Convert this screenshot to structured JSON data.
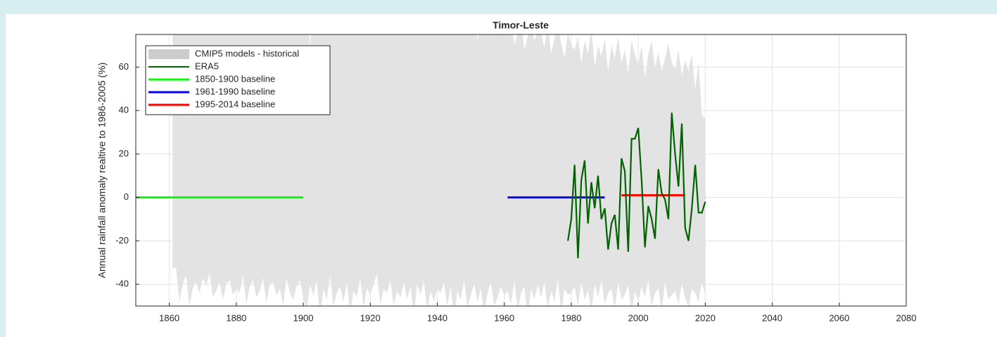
{
  "chart_data": {
    "type": "line",
    "title": "Timor-Leste",
    "ylabel": "Annual rainfall anomaly realtive to 1986-2005 (%)",
    "xlim": [
      1850,
      2080
    ],
    "xticks": [
      1860,
      1880,
      1900,
      1920,
      1940,
      1960,
      1980,
      2000,
      2020,
      2040,
      2060,
      2080
    ],
    "ylim": [
      -50,
      75
    ],
    "yticks": [
      -40,
      -20,
      0,
      20,
      40,
      60
    ],
    "grid": true,
    "legend": "upper left",
    "band": {
      "name": "CMIP5 models - historical",
      "color": "#e3e3e3",
      "x": [
        1861,
        1862,
        1863,
        1864,
        1865,
        1866,
        1867,
        1868,
        1869,
        1870,
        1871,
        1872,
        1873,
        1874,
        1875,
        1876,
        1877,
        1878,
        1879,
        1880,
        1881,
        1882,
        1883,
        1884,
        1885,
        1886,
        1887,
        1888,
        1889,
        1890,
        1891,
        1892,
        1893,
        1894,
        1895,
        1896,
        1897,
        1898,
        1899,
        1900,
        1901,
        1902,
        1903,
        1904,
        1905,
        1906,
        1907,
        1908,
        1909,
        1910,
        1911,
        1912,
        1913,
        1914,
        1915,
        1916,
        1917,
        1918,
        1919,
        1920,
        1921,
        1922,
        1923,
        1924,
        1925,
        1926,
        1927,
        1928,
        1929,
        1930,
        1931,
        1932,
        1933,
        1934,
        1935,
        1936,
        1937,
        1938,
        1939,
        1940,
        1941,
        1942,
        1943,
        1944,
        1945,
        1946,
        1947,
        1948,
        1949,
        1950,
        1951,
        1952,
        1953,
        1954,
        1955,
        1956,
        1957,
        1958,
        1959,
        1960,
        1961,
        1962,
        1963,
        1964,
        1965,
        1966,
        1967,
        1968,
        1969,
        1970,
        1971,
        1972,
        1973,
        1974,
        1975,
        1976,
        1977,
        1978,
        1979,
        1980,
        1981,
        1982,
        1983,
        1984,
        1985,
        1986,
        1987,
        1988,
        1989,
        1990,
        1991,
        1992,
        1993,
        1994,
        1995,
        1996,
        1997,
        1998,
        1999,
        2000,
        2001,
        2002,
        2003,
        2004,
        2005,
        2006,
        2007,
        2008,
        2009,
        2010,
        2011,
        2012,
        2013,
        2014,
        2015,
        2016,
        2017,
        2018,
        2019,
        2020
      ],
      "upper": [
        80,
        85,
        90,
        78,
        82,
        88,
        92,
        80,
        76,
        85,
        90,
        84,
        79,
        88,
        95,
        82,
        77,
        86,
        91,
        83,
        80,
        88,
        94,
        79,
        85,
        90,
        82,
        76,
        89,
        93,
        84,
        78,
        87,
        92,
        81,
        86,
        90,
        79,
        83,
        88,
        95,
        70,
        85,
        90,
        80,
        88,
        92,
        78,
        86,
        94,
        82,
        89,
        91,
        80,
        87,
        93,
        84,
        79,
        90,
        86,
        88,
        92,
        81,
        85,
        90,
        78,
        86,
        94,
        83,
        89,
        91,
        80,
        87,
        93,
        84,
        79,
        90,
        86,
        88,
        92,
        81,
        85,
        90,
        78,
        86,
        94,
        83,
        89,
        91,
        80,
        87,
        72,
        84,
        79,
        90,
        86,
        76,
        83,
        88,
        80,
        78,
        85,
        70,
        76,
        82,
        68,
        74,
        80,
        72,
        77,
        75,
        69,
        80,
        66,
        73,
        79,
        71,
        64,
        76,
        70,
        68,
        74,
        62,
        72,
        66,
        78,
        60,
        70,
        65,
        73,
        58,
        70,
        64,
        74,
        62,
        68,
        57,
        72,
        66,
        61,
        70,
        55,
        66,
        72,
        60,
        67,
        58,
        64,
        71,
        62,
        59,
        68,
        56,
        63,
        58,
        66,
        50,
        62,
        38,
        36
      ],
      "lower": [
        -33,
        -32,
        -48,
        -40,
        -36,
        -50,
        -42,
        -39,
        -44,
        -37,
        -41,
        -35,
        -46,
        -43,
        -39,
        -47,
        -40,
        -38,
        -45,
        -42,
        -44,
        -36,
        -49,
        -41,
        -38,
        -46,
        -43,
        -37,
        -48,
        -40,
        -39,
        -45,
        -42,
        -50,
        -37,
        -44,
        -47,
        -41,
        -38,
        -46,
        -52,
        -40,
        -45,
        -38,
        -55,
        -42,
        -47,
        -36,
        -50,
        -44,
        -41,
        -48,
        -39,
        -53,
        -43,
        -46,
        -37,
        -51,
        -42,
        -45,
        -40,
        -35,
        -49,
        -42,
        -44,
        -38,
        -50,
        -43,
        -46,
        -39,
        -47,
        -41,
        -54,
        -40,
        -45,
        -38,
        -52,
        -43,
        -48,
        -42,
        -44,
        -39,
        -50,
        -41,
        -56,
        -43,
        -47,
        -38,
        -51,
        -45,
        -40,
        -48,
        -42,
        -53,
        -44,
        -39,
        -50,
        -46,
        -41,
        -45,
        -43,
        -49,
        -38,
        -52,
        -44,
        -41,
        -55,
        -42,
        -47,
        -40,
        -46,
        -39,
        -51,
        -43,
        -48,
        -37,
        -53,
        -42,
        -45,
        -44,
        -41,
        -50,
        -39,
        -47,
        -43,
        -52,
        -40,
        -46,
        -38,
        -49,
        -44,
        -42,
        -51,
        -39,
        -47,
        -45,
        -40,
        -53,
        -43,
        -48,
        -41,
        -46,
        -38,
        -50,
        -44,
        -42,
        -52,
        -39,
        -47,
        -45,
        -43,
        -49,
        -40,
        -46,
        -51,
        -42,
        -44,
        -48,
        -39,
        -45
      ]
    },
    "series": [
      {
        "name": "ERA5",
        "color": "#006400",
        "x": [
          1979,
          1980,
          1981,
          1982,
          1983,
          1984,
          1985,
          1986,
          1987,
          1988,
          1989,
          1990,
          1991,
          1992,
          1993,
          1994,
          1995,
          1996,
          1997,
          1998,
          1999,
          2000,
          2001,
          2002,
          2003,
          2004,
          2005,
          2006,
          2007,
          2008,
          2009,
          2010,
          2011,
          2012,
          2013,
          2014,
          2015,
          2016,
          2017,
          2018,
          2019,
          2020
        ],
        "values": [
          -20,
          -10,
          15,
          -28,
          8,
          17,
          -12,
          7,
          -5,
          10,
          -10,
          -5,
          -24,
          -12,
          -8,
          -24,
          18,
          12,
          -25,
          27,
          27,
          32,
          8,
          -23,
          -4,
          -10,
          -19,
          13,
          2,
          -1,
          -10,
          39,
          20,
          5,
          34,
          -14,
          -20,
          -5,
          15,
          -7,
          -7,
          -2
        ]
      },
      {
        "name": "1850-1900 baseline",
        "color": "#00ff00",
        "x": [
          1850,
          1900
        ],
        "values": [
          0,
          0
        ]
      },
      {
        "name": "1961-1990 baseline",
        "color": "#0000ff",
        "x": [
          1961,
          1990
        ],
        "values": [
          0,
          0
        ]
      },
      {
        "name": "1995-2014 baseline",
        "color": "#ff0000",
        "x": [
          1995,
          2014
        ],
        "values": [
          1,
          1
        ]
      }
    ]
  }
}
